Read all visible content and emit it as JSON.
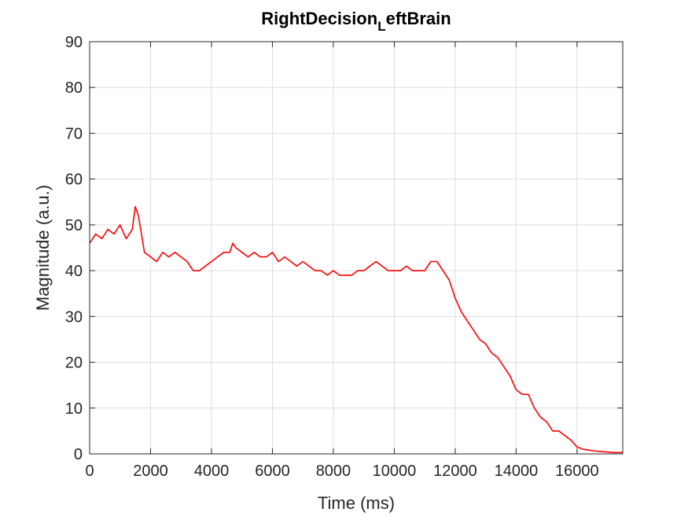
{
  "chart_data": {
    "type": "line",
    "title_main": "RightDecision",
    "title_sub": "L",
    "title_rest": "eftBrain",
    "xlabel": "Time (ms)",
    "ylabel": "Magnitude (a.u.)",
    "xlim": [
      0,
      17500
    ],
    "ylim": [
      0,
      90
    ],
    "xticks": [
      0,
      2000,
      4000,
      6000,
      8000,
      10000,
      12000,
      14000,
      16000
    ],
    "yticks": [
      0,
      10,
      20,
      30,
      40,
      50,
      60,
      70,
      80,
      90
    ],
    "xtick_labels": [
      "0",
      "2000",
      "4000",
      "6000",
      "8000",
      "10000",
      "12000",
      "14000",
      "16000"
    ],
    "ytick_labels": [
      "0",
      "10",
      "20",
      "30",
      "40",
      "50",
      "60",
      "70",
      "80",
      "90"
    ],
    "grid": true,
    "series": [
      {
        "color": "#ff0000",
        "x": [
          0,
          200,
          400,
          600,
          800,
          1000,
          1200,
          1400,
          1500,
          1600,
          1700,
          1800,
          2000,
          2200,
          2400,
          2600,
          2800,
          3000,
          3200,
          3400,
          3600,
          3800,
          4000,
          4200,
          4400,
          4600,
          4700,
          4800,
          5000,
          5200,
          5400,
          5600,
          5800,
          6000,
          6200,
          6400,
          6600,
          6800,
          7000,
          7200,
          7400,
          7600,
          7800,
          8000,
          8200,
          8400,
          8600,
          8800,
          9000,
          9200,
          9400,
          9600,
          9800,
          10000,
          10200,
          10400,
          10600,
          10800,
          11000,
          11200,
          11400,
          11600,
          11800,
          12000,
          12200,
          12400,
          12600,
          12800,
          13000,
          13200,
          13400,
          13600,
          13800,
          14000,
          14200,
          14400,
          14600,
          14800,
          15000,
          15200,
          15400,
          15600,
          15800,
          16000,
          16200,
          16400,
          16600,
          16800,
          17000,
          17200,
          17500
        ],
        "y": [
          46,
          48,
          47,
          49,
          48,
          50,
          47,
          49,
          54,
          52,
          48,
          44,
          43,
          42,
          44,
          43,
          44,
          43,
          42,
          40,
          40,
          41,
          42,
          43,
          44,
          44,
          46,
          45,
          44,
          43,
          44,
          43,
          43,
          44,
          42,
          43,
          42,
          41,
          42,
          41,
          40,
          40,
          39,
          40,
          39,
          39,
          39,
          40,
          40,
          41,
          42,
          41,
          40,
          40,
          40,
          41,
          40,
          40,
          40,
          42,
          42,
          40,
          38,
          34,
          31,
          29,
          27,
          25,
          24,
          22,
          21,
          19,
          17,
          14,
          13,
          13,
          10,
          8,
          7,
          5,
          5,
          4,
          3,
          1.5,
          1,
          0.8,
          0.6,
          0.5,
          0.4,
          0.3,
          0.3
        ]
      }
    ]
  }
}
